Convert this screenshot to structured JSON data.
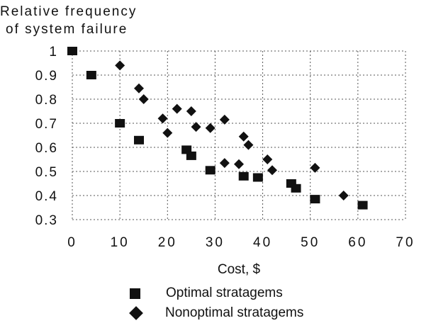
{
  "chart_data": {
    "type": "scatter",
    "ylabel_lines": [
      "Relative frequency",
      "of system failure"
    ],
    "xlabel": "Cost, $",
    "xlim": [
      0,
      70
    ],
    "ylim": [
      0.3,
      1
    ],
    "x_ticks": [
      "0",
      "10",
      "20",
      "30",
      "40",
      "50",
      "60",
      "70"
    ],
    "y_ticks": [
      "0.3",
      "0.4",
      "0.5",
      "0.6",
      "0.7",
      "0.8",
      "0.9",
      "1"
    ],
    "grid": true,
    "legend_placement": "bottom-center",
    "series": [
      {
        "name": "Optimal stratagems",
        "marker": "square",
        "color": "#111111",
        "points": [
          [
            0,
            1.0
          ],
          [
            4,
            0.9
          ],
          [
            10,
            0.7
          ],
          [
            14,
            0.63
          ],
          [
            24,
            0.59
          ],
          [
            25,
            0.565
          ],
          [
            29,
            0.505
          ],
          [
            36,
            0.48
          ],
          [
            39,
            0.475
          ],
          [
            46,
            0.45
          ],
          [
            47,
            0.43
          ],
          [
            51,
            0.385
          ],
          [
            61,
            0.36
          ]
        ]
      },
      {
        "name": "Nonoptimal stratagems",
        "marker": "diamond",
        "color": "#111111",
        "points": [
          [
            10,
            0.94
          ],
          [
            14,
            0.845
          ],
          [
            15,
            0.8
          ],
          [
            19,
            0.72
          ],
          [
            20,
            0.66
          ],
          [
            22,
            0.76
          ],
          [
            25,
            0.75
          ],
          [
            26,
            0.685
          ],
          [
            29,
            0.68
          ],
          [
            32,
            0.715
          ],
          [
            32,
            0.535
          ],
          [
            35,
            0.53
          ],
          [
            36,
            0.645
          ],
          [
            37,
            0.61
          ],
          [
            41,
            0.55
          ],
          [
            42,
            0.505
          ],
          [
            51,
            0.515
          ],
          [
            57,
            0.4
          ]
        ]
      }
    ]
  }
}
